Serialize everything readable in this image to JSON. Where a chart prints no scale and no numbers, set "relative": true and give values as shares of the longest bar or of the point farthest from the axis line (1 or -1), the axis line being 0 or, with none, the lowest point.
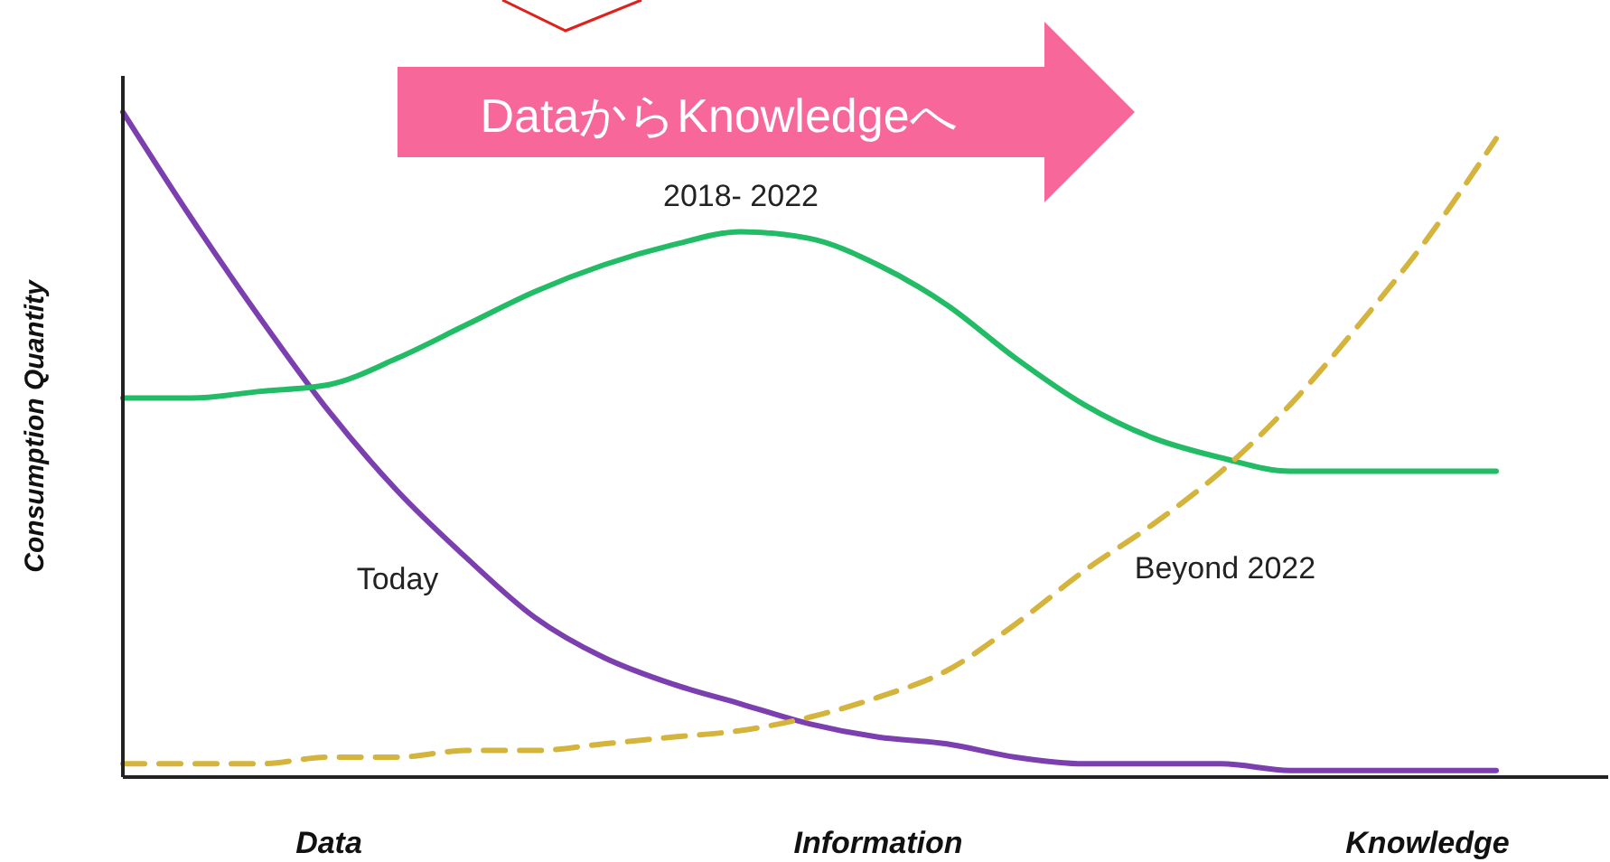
{
  "chart_data": {
    "type": "line",
    "relative": true,
    "ylabel": "Consumption Quantity",
    "marker": "none",
    "categories": [
      null,
      null,
      null,
      "Data",
      null,
      null,
      null,
      null,
      null,
      null,
      null,
      "Information",
      null,
      null,
      null,
      null,
      null,
      null,
      null,
      "Knowledge",
      null
    ],
    "series": [
      {
        "name": "Today",
        "color": "#7b3fb0",
        "line_style": "solid",
        "values": [
          1,
          0.84,
          0.69,
          0.55,
          0.43,
          0.33,
          0.24,
          0.18,
          0.14,
          0.11,
          0.08,
          0.06,
          0.05,
          0.03,
          0.02,
          0.02,
          0.02,
          0.01,
          0.01,
          0.01,
          0.01
        ]
      },
      {
        "name": "2018- 2022",
        "color": "#22bb66",
        "line_style": "solid",
        "values": [
          0.57,
          0.57,
          0.58,
          0.59,
          0.63,
          0.68,
          0.73,
          0.77,
          0.8,
          0.82,
          0.81,
          0.77,
          0.71,
          0.63,
          0.56,
          0.51,
          0.48,
          0.46,
          0.46,
          0.46,
          0.46
        ]
      },
      {
        "name": "Beyond 2022",
        "color": "#d4b43c",
        "line_style": "dashed",
        "values": [
          0.02,
          0.02,
          0.02,
          0.03,
          0.03,
          0.04,
          0.04,
          0.05,
          0.06,
          0.07,
          0.09,
          0.12,
          0.16,
          0.23,
          0.31,
          0.38,
          0.46,
          0.56,
          0.68,
          0.81,
          0.96
        ]
      }
    ],
    "annotations": [
      "DataからKnowledgeへ"
    ]
  }
}
